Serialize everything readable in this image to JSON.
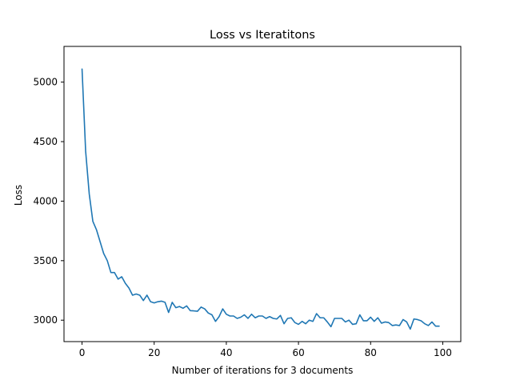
{
  "chart_data": {
    "type": "line",
    "title": "Loss vs Iteratitons",
    "xlabel": "Number of iterations for 3 documents",
    "ylabel": "Loss",
    "xlim": [
      -5,
      105
    ],
    "ylim": [
      2820,
      5300
    ],
    "xticks": [
      0,
      20,
      40,
      60,
      80,
      100
    ],
    "yticks": [
      3000,
      3500,
      4000,
      4500,
      5000
    ],
    "grid": false,
    "series_color": "#1f77b4",
    "series": [
      {
        "x": [
          0,
          1,
          2,
          3,
          4,
          5,
          6,
          7,
          8,
          9,
          10,
          11,
          12,
          13,
          14,
          15,
          16,
          17,
          18,
          19,
          20,
          21,
          22,
          23,
          24,
          25,
          26,
          27,
          28,
          29,
          30,
          31,
          32,
          33,
          34,
          35,
          36,
          37,
          38,
          39,
          40,
          41,
          42,
          43,
          44,
          45,
          46,
          47,
          48,
          49,
          50,
          51,
          52,
          53,
          54,
          55,
          56,
          57,
          58,
          59,
          60,
          61,
          62,
          63,
          64,
          65,
          66,
          67,
          68,
          69,
          70,
          71,
          72,
          73,
          74,
          75,
          76,
          77,
          78,
          79,
          80,
          81,
          82,
          83,
          84,
          85,
          86,
          87,
          88,
          89,
          90,
          91,
          92,
          93,
          94,
          95,
          96,
          97,
          98,
          99
        ],
        "values": [
          5110,
          4420,
          4060,
          3830,
          3760,
          3660,
          3560,
          3500,
          3400,
          3400,
          3345,
          3365,
          3310,
          3270,
          3210,
          3220,
          3210,
          3165,
          3210,
          3155,
          3145,
          3155,
          3160,
          3150,
          3065,
          3150,
          3105,
          3115,
          3100,
          3120,
          3080,
          3078,
          3075,
          3110,
          3095,
          3060,
          3045,
          2990,
          3030,
          3095,
          3050,
          3035,
          3035,
          3015,
          3025,
          3045,
          3015,
          3050,
          3020,
          3035,
          3035,
          3015,
          3030,
          3015,
          3010,
          3040,
          2970,
          3015,
          3020,
          2980,
          2965,
          2990,
          2970,
          3000,
          2990,
          3055,
          3020,
          3020,
          2985,
          2945,
          3015,
          3015,
          3015,
          2985,
          3000,
          2965,
          2970,
          3045,
          2995,
          2995,
          3025,
          2990,
          3020,
          2975,
          2985,
          2980,
          2955,
          2960,
          2955,
          3005,
          2985,
          2925,
          3010,
          3005,
          2995,
          2970,
          2955,
          2985,
          2950,
          2950
        ]
      }
    ]
  }
}
